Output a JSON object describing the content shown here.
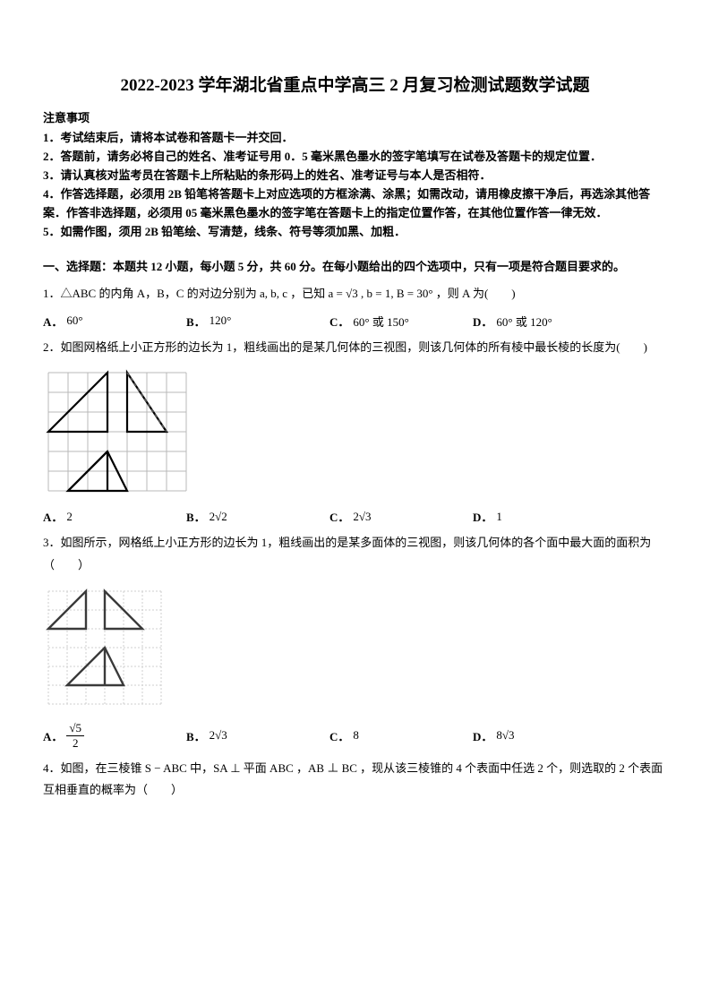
{
  "title": "2022-2023 学年湖北省重点中学高三 2 月复习检测试题数学试题",
  "notice_head": "注意事项",
  "notices": [
    "1．考试结束后，请将本试卷和答题卡一并交回．",
    "2．答题前，请务必将自己的姓名、准考证号用 0．5 毫米黑色墨水的签字笔填写在试卷及答题卡的规定位置．",
    "3．请认真核对监考员在答题卡上所粘贴的条形码上的姓名、准考证号与本人是否相符．",
    "4．作答选择题，必须用 2B 铅笔将答题卡上对应选项的方框涂满、涂黑；如需改动，请用橡皮擦干净后，再选涂其他答案．作答非选择题，必须用 05 毫米黑色墨水的签字笔在答题卡上的指定位置作答，在其他位置作答一律无效．",
    "5．如需作图，须用 2B 铅笔绘、写清楚，线条、符号等须加黑、加粗．"
  ],
  "section_head": "一、选择题：本题共 12 小题，每小题 5 分，共 60 分。在每小题给出的四个选项中，只有一项是符合题目要求的。",
  "q1": {
    "text_pre": "1．△ABC 的内角 A，B，C 的对边分别为 a, b, c ，已知 a = √3 , b = 1, B = 30° ，则 A 为(　　)",
    "opts": {
      "A": "60°",
      "B": "120°",
      "C": "60° 或 150°",
      "D": "60° 或 120°"
    }
  },
  "q2": {
    "text": "2．如图网格纸上小正方形的边长为 1，粗线画出的是某几何体的三视图，则该几何体的所有棱中最长棱的长度为(　　)",
    "opts": {
      "A": "2",
      "B": "2√2",
      "C": "2√3",
      "D": "1"
    },
    "figure": {
      "grid_color": "#b8b8b8",
      "line_color": "#000000",
      "dash_color": "#555555",
      "cell": 22,
      "cols": 7,
      "rows": 6,
      "top_left_tri": [
        [
          0,
          3
        ],
        [
          3,
          0
        ],
        [
          3,
          3
        ]
      ],
      "top_right_tri": [
        [
          4,
          3
        ],
        [
          4,
          0
        ],
        [
          6,
          3
        ]
      ],
      "top_right_dash": [
        [
          4,
          0
        ],
        [
          6,
          3
        ]
      ],
      "bot_tri_outer": [
        [
          1,
          6
        ],
        [
          3,
          4
        ],
        [
          4,
          6
        ],
        [
          1,
          6
        ]
      ],
      "bot_tri_inner": [
        [
          1,
          6
        ],
        [
          3,
          4
        ]
      ]
    }
  },
  "q3": {
    "text": "3．如图所示，网格纸上小正方形的边长为 1，粗线画出的是某多面体的三视图，则该几何体的各个面中最大面的面积为（　　）",
    "opts": {
      "A": "√5 / 2",
      "B": "2√3",
      "C": "8",
      "D": "8√3"
    },
    "figure": {
      "grid_color": "#cfcfcf",
      "line_color": "#3a3a3a",
      "cell": 21,
      "cols": 6,
      "rows": 6,
      "tri_top_left": [
        [
          0,
          2
        ],
        [
          2,
          0
        ],
        [
          2,
          2
        ]
      ],
      "tri_top_right": [
        [
          3,
          2
        ],
        [
          3,
          0
        ],
        [
          5,
          2
        ]
      ],
      "tri_bot": [
        [
          1,
          5
        ],
        [
          3,
          3
        ],
        [
          4,
          5
        ]
      ]
    }
  },
  "q4": {
    "text": "4．如图，在三棱锥 S − ABC 中，SA ⊥ 平面 ABC ，AB ⊥ BC ，现从该三棱锥的 4 个表面中任选 2 个，则选取的 2 个表面互相垂直的概率为（　　）"
  },
  "colors": {
    "text": "#000000",
    "background": "#ffffff"
  },
  "typography": {
    "title_fontsize": 19,
    "body_fontsize": 13,
    "line_height": 1.9
  }
}
